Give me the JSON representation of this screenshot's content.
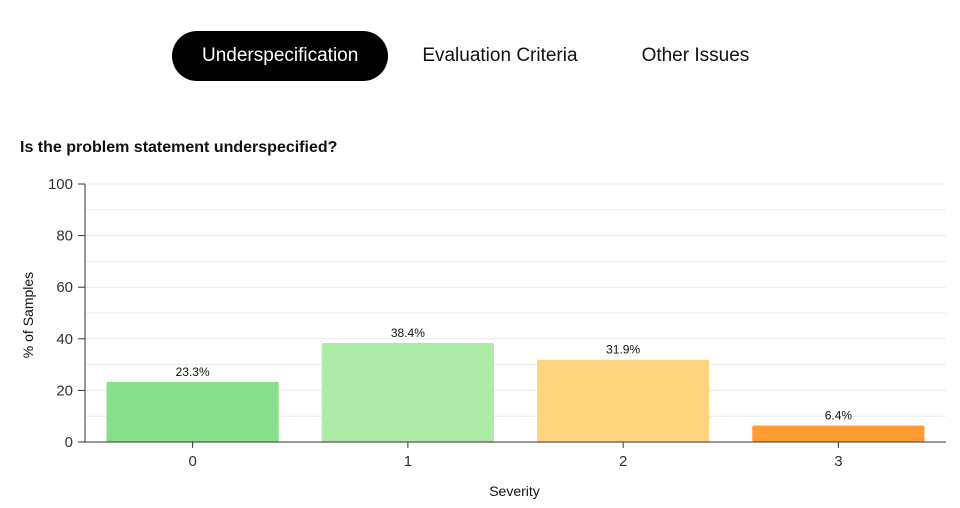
{
  "tabs": [
    {
      "label": "Underspecification",
      "active": true
    },
    {
      "label": "Evaluation Criteria",
      "active": false
    },
    {
      "label": "Other Issues",
      "active": false
    }
  ],
  "chart_data": {
    "type": "bar",
    "title": "Is the problem statement underspecified?",
    "xlabel": "Severity",
    "ylabel": "% of Samples",
    "categories": [
      "0",
      "1",
      "2",
      "3"
    ],
    "values": [
      23.3,
      38.4,
      31.9,
      6.4
    ],
    "data_labels": [
      "23.3%",
      "38.4%",
      "31.9%",
      "6.4%"
    ],
    "colors": [
      "#85e089",
      "#aeeaa8",
      "#ffd47e",
      "#ff9c35"
    ],
    "ylim": [
      0,
      100
    ],
    "yticks": [
      0,
      20,
      40,
      60,
      80,
      100
    ],
    "grid": true
  }
}
